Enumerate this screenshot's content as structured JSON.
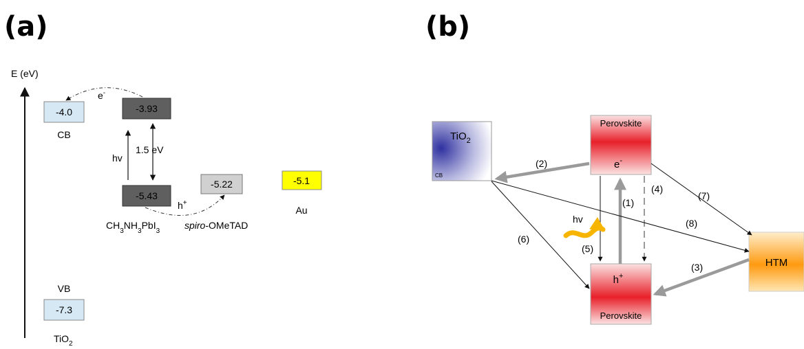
{
  "panel_a": {
    "label": "(a)",
    "axis_label": "E (eV)",
    "tio2_cb": {
      "value": "-4.0",
      "label": "CB"
    },
    "tio2_vb": {
      "value": "-7.3",
      "label": "VB"
    },
    "tio2_name": {
      "main": "TiO",
      "sub": "2"
    },
    "perov_top": {
      "value": "-3.93"
    },
    "perov_bottom": {
      "value": "-5.43"
    },
    "perov_name": {
      "p1": "CH",
      "s1": "3",
      "p2": "NH",
      "s2": "3",
      "p3": "PbI",
      "s3": "3"
    },
    "spiro": {
      "value": "-5.22",
      "italic": "spiro",
      "rest": "-OMeTAD"
    },
    "au": {
      "value": "-5.1",
      "label": "Au"
    },
    "electron_label": {
      "main": "e",
      "sup": "-"
    },
    "hole_label": {
      "main": "h",
      "sup": "+"
    },
    "hv_label": "hv",
    "gap_label": "1.5 eV"
  },
  "panel_b": {
    "label": "(b)",
    "tio2": {
      "main": "TiO",
      "sub": "2",
      "cb": "CB"
    },
    "perov_top": {
      "name": "Perovskite",
      "carrier": "e",
      "sup": "-"
    },
    "perov_bottom": {
      "name": "Perovskite",
      "carrier": "h",
      "sup": "+"
    },
    "htm": "HTM",
    "hv_label": "hv",
    "steps": [
      "(1)",
      "(2)",
      "(3)",
      "(4)",
      "(5)",
      "(6)",
      "(7)",
      "(8)"
    ]
  },
  "colors": {
    "light_blue": "#d5e8f4",
    "dark_gray": "#5f5f5f",
    "light_gray": "#d0d0d0",
    "yellow": "#ffff00",
    "perov_red": "#e8202a",
    "tio2_blue": "#3d3fa8",
    "htm_orange": "#ff9a10",
    "arrow_gray": "#9a9a9a"
  }
}
